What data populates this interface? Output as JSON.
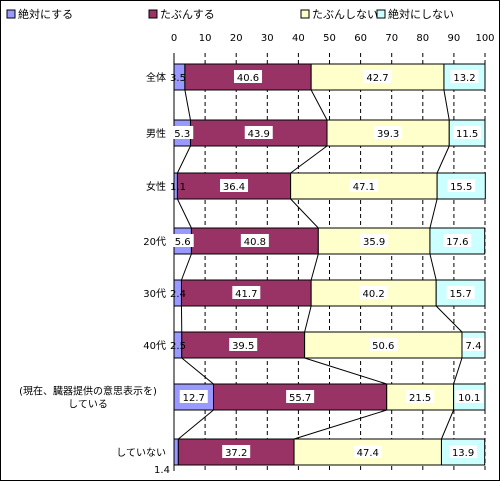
{
  "chart_data": {
    "type": "bar",
    "stacked": true,
    "orientation": "horizontal",
    "legend_position": "top",
    "xlim": [
      0,
      100
    ],
    "x_ticks": [
      0,
      10,
      20,
      30,
      40,
      50,
      60,
      70,
      80,
      90,
      100
    ],
    "grid": true,
    "series": [
      {
        "name": "絶対にする",
        "color": "#9999ff"
      },
      {
        "name": "たぶんする",
        "color": "#993366"
      },
      {
        "name": "たぶんしない",
        "color": "#ffffcc"
      },
      {
        "name": "絶対にしない",
        "color": "#ccffff"
      }
    ],
    "categories": [
      {
        "label": [
          "全体"
        ],
        "values": [
          3.5,
          40.6,
          42.7,
          13.2
        ],
        "value_labels": [
          "3.5",
          "40.6",
          "42.7",
          "13.2"
        ]
      },
      {
        "label": [
          "男性"
        ],
        "values": [
          5.3,
          43.9,
          39.3,
          11.5
        ],
        "value_labels": [
          "5.3",
          "43.9",
          "39.3",
          "11.5"
        ]
      },
      {
        "label": [
          "女性"
        ],
        "values": [
          1.1,
          36.4,
          47.1,
          15.5
        ],
        "value_labels": [
          "1.1",
          "36.4",
          "47.1",
          "15.5"
        ]
      },
      {
        "label": [
          "20代"
        ],
        "values": [
          5.6,
          40.8,
          35.9,
          17.6
        ],
        "value_labels": [
          "5.6",
          "40.8",
          "35.9",
          "17.6"
        ]
      },
      {
        "label": [
          "30代"
        ],
        "values": [
          2.4,
          41.7,
          40.2,
          15.7
        ],
        "value_labels": [
          "2.4",
          "41.7",
          "40.2",
          "15.7"
        ]
      },
      {
        "label": [
          "40代"
        ],
        "values": [
          2.5,
          39.5,
          50.6,
          7.4
        ],
        "value_labels": [
          "2.5",
          "39.5",
          "50.6",
          "7.4"
        ]
      },
      {
        "label": [
          "(現在、臓器提供の意思表示を)",
          "している"
        ],
        "values": [
          12.7,
          55.7,
          21.5,
          10.1
        ],
        "value_labels": [
          "12.7",
          "55.7",
          "21.5",
          "10.1"
        ]
      },
      {
        "label": [
          "していない"
        ],
        "values": [
          1.4,
          37.2,
          47.4,
          13.9
        ],
        "value_labels": [
          "1.4",
          "37.2",
          "47.4",
          "13.9"
        ]
      }
    ]
  }
}
